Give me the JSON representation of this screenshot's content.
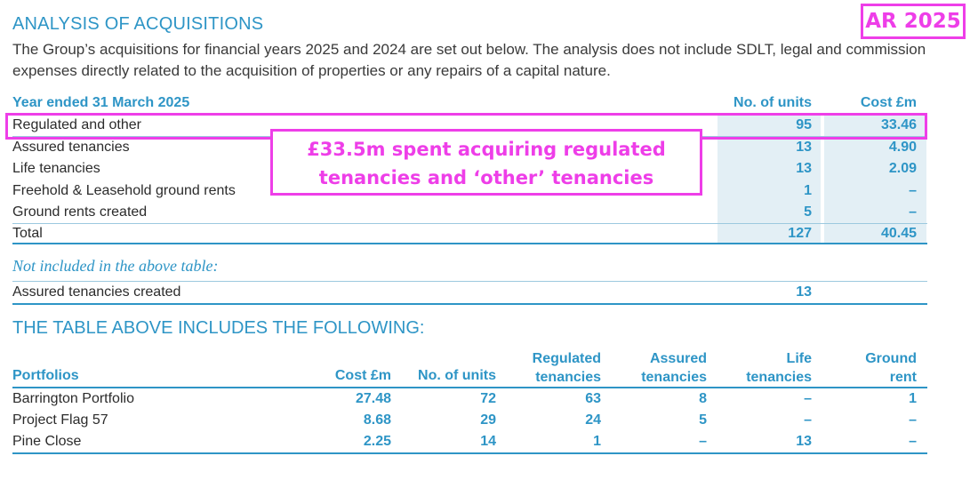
{
  "title": "ANALYSIS OF ACQUISITIONS",
  "badge": "AR 2025",
  "intro": "The Group’s acquisitions for financial years 2025 and 2024 are set out below. The analysis does not include SDLT, legal and commission expenses directly related to the acquisition of properties or any repairs of a capital nature.",
  "table1": {
    "header": {
      "label": "Year ended 31 March 2025",
      "units": "No. of units",
      "cost": "Cost £m"
    },
    "rows": [
      {
        "label": "Regulated and other",
        "units": "95",
        "cost": "33.46"
      },
      {
        "label": "Assured tenancies",
        "units": "13",
        "cost": "4.90"
      },
      {
        "label": "Life tenancies",
        "units": "13",
        "cost": "2.09"
      },
      {
        "label": "Freehold & Leasehold ground rents",
        "units": "1",
        "cost": "–"
      },
      {
        "label": "Ground rents created",
        "units": "5",
        "cost": "–"
      }
    ],
    "total": {
      "label": "Total",
      "units": "127",
      "cost": "40.45"
    }
  },
  "callout": {
    "line1": "£33.5m spent acquiring regulated",
    "line2": "tenancies and ‘other’ tenancies"
  },
  "note": {
    "heading": "Not included in the above table:",
    "label": "Assured tenancies created",
    "units": "13"
  },
  "table2": {
    "title": "THE TABLE ABOVE INCLUDES THE FOLLOWING:",
    "headers": {
      "portfolios": "Portfolios",
      "cost": "Cost £m",
      "units": "No. of units",
      "regulated1": "Regulated",
      "regulated2": "tenancies",
      "assured1": "Assured",
      "assured2": "tenancies",
      "life1": "Life",
      "life2": "tenancies",
      "ground1": "Ground",
      "ground2": "rent"
    },
    "rows": [
      {
        "name": "Barrington Portfolio",
        "cost": "27.48",
        "units": "72",
        "regulated": "63",
        "assured": "8",
        "life": "–",
        "ground": "1"
      },
      {
        "name": "Project Flag 57",
        "cost": "8.68",
        "units": "29",
        "regulated": "24",
        "assured": "5",
        "life": "–",
        "ground": "–"
      },
      {
        "name": "Pine Close",
        "cost": "2.25",
        "units": "14",
        "regulated": "1",
        "assured": "–",
        "life": "13",
        "ground": "–"
      }
    ]
  }
}
